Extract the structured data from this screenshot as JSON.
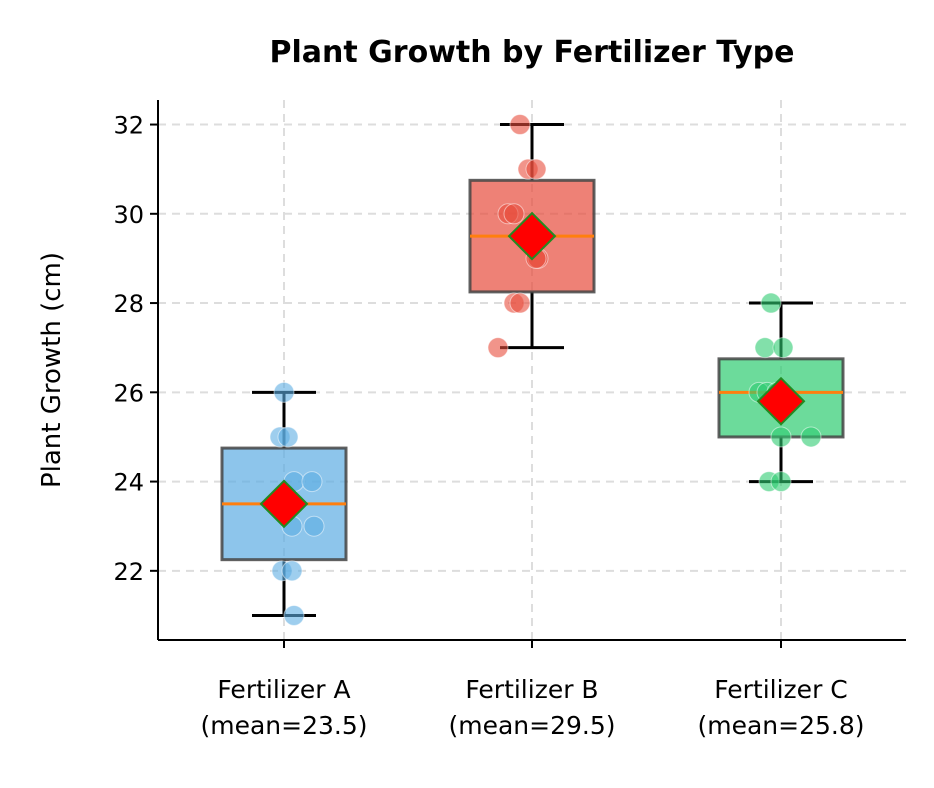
{
  "chart_data": {
    "type": "box",
    "title": "Plant Growth by Fertilizer Type",
    "xlabel": "",
    "ylabel": "Plant Growth (cm)",
    "ylim": [
      20.45,
      32.55
    ],
    "yticks": [
      22,
      24,
      26,
      28,
      30,
      32
    ],
    "grid": true,
    "categories": [
      "Fertilizer A\n(mean=23.5)",
      "Fertilizer B\n(mean=29.5)",
      "Fertilizer C\n(mean=25.8)"
    ],
    "category_lines": [
      [
        "Fertilizer A",
        "(mean=23.5)"
      ],
      [
        "Fertilizer B",
        "(mean=29.5)"
      ],
      [
        "Fertilizer C",
        "(mean=25.8)"
      ]
    ],
    "series": [
      {
        "name": "Fertilizer A",
        "color": "#5DADE2",
        "points": [
          26,
          25,
          25,
          24,
          24,
          23,
          23,
          22,
          22,
          21
        ],
        "q1": 22.25,
        "median": 23.5,
        "q3": 24.75,
        "whisker_low": 21,
        "whisker_high": 26,
        "mean": 23.5
      },
      {
        "name": "Fertilizer B",
        "color": "#E74C3C",
        "points": [
          32,
          31,
          31,
          30,
          30,
          29,
          29,
          28,
          28,
          27
        ],
        "q1": 28.25,
        "median": 29.5,
        "q3": 30.75,
        "whisker_low": 27,
        "whisker_high": 32,
        "mean": 29.5
      },
      {
        "name": "Fertilizer C",
        "color": "#2ECC71",
        "points": [
          28,
          27,
          27,
          26,
          26,
          26,
          25,
          25,
          24,
          24
        ],
        "q1": 25,
        "median": 26,
        "q3": 26.75,
        "whisker_low": 24,
        "whisker_high": 28,
        "mean": 25.8
      }
    ],
    "median_color": "#FF7F0E",
    "mean_marker_color": "#FF0000"
  }
}
